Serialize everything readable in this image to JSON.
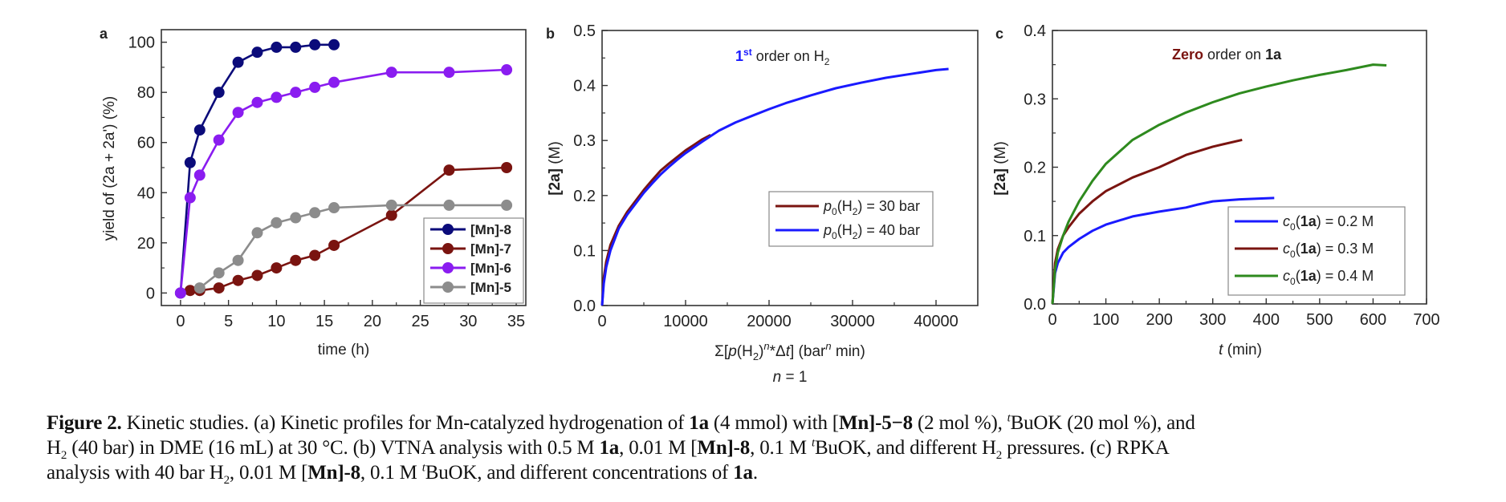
{
  "chart_data": [
    {
      "panel": "a",
      "type": "line",
      "title": "",
      "xlabel": "time (h)",
      "ylabel": "yield of (2a + 2a') (%)",
      "xlim": [
        -2,
        36
      ],
      "ylim": [
        -5,
        105
      ],
      "xticks": [
        0,
        5,
        10,
        15,
        20,
        25,
        30,
        35
      ],
      "yticks": [
        0,
        20,
        40,
        60,
        80,
        100
      ],
      "grid": false,
      "legend_position": "bottom-right",
      "markers": true,
      "series": [
        {
          "name": "[Mn]-8",
          "color": "#0b0b7a",
          "x": [
            0,
            1,
            2,
            4,
            6,
            8,
            10,
            12,
            14,
            16
          ],
          "y": [
            0,
            52,
            65,
            80,
            92,
            96,
            98,
            98,
            99,
            99
          ]
        },
        {
          "name": "[Mn]-7",
          "color": "#7a1410",
          "x": [
            1,
            2,
            4,
            6,
            8,
            10,
            12,
            14,
            16,
            22,
            28,
            34
          ],
          "y": [
            1,
            1,
            2,
            5,
            7,
            10,
            13,
            15,
            19,
            31,
            49,
            50
          ]
        },
        {
          "name": "[Mn]-6",
          "color": "#8a1cf0",
          "x": [
            0,
            1,
            2,
            4,
            6,
            8,
            10,
            12,
            14,
            16,
            22,
            28,
            34
          ],
          "y": [
            0,
            38,
            47,
            61,
            72,
            76,
            78,
            80,
            82,
            84,
            88,
            88,
            89
          ]
        },
        {
          "name": "[Mn]-5",
          "color": "#8c8c8c",
          "x": [
            2,
            4,
            6,
            8,
            10,
            12,
            14,
            16,
            22,
            28,
            34
          ],
          "y": [
            2,
            8,
            13,
            24,
            28,
            30,
            32,
            34,
            35,
            35,
            35
          ]
        }
      ]
    },
    {
      "panel": "b",
      "type": "line",
      "title": "",
      "annotation": {
        "prefix": "1",
        "sup": "st",
        "text": " order on H",
        "sub": "2"
      },
      "xlabel": "Σ[p(H2)^n*Δt] (bar^n min)",
      "xlabel_note": "n = 1",
      "ylabel": "[2a] (M)",
      "xlim": [
        0,
        45000
      ],
      "ylim": [
        0,
        0.5
      ],
      "xticks": [
        0,
        10000,
        20000,
        30000,
        40000
      ],
      "yticks": [
        0.0,
        0.1,
        0.2,
        0.3,
        0.4,
        0.5
      ],
      "grid": false,
      "legend_position": "center-right",
      "markers": false,
      "series": [
        {
          "name": "p0(H2) = 30 bar",
          "color": "#7a1410",
          "x": [
            0,
            200,
            500,
            1000,
            2000,
            3000,
            4000,
            5000,
            6000,
            7000,
            8000,
            9000,
            10000,
            11000,
            12000,
            13000
          ],
          "y": [
            0,
            0.05,
            0.08,
            0.11,
            0.145,
            0.17,
            0.19,
            0.21,
            0.228,
            0.245,
            0.258,
            0.27,
            0.282,
            0.292,
            0.302,
            0.31
          ]
        },
        {
          "name": "p0(H2) = 40 bar",
          "color": "#1a1aff",
          "x": [
            0,
            200,
            500,
            1000,
            2000,
            3000,
            4000,
            5000,
            6000,
            7000,
            8000,
            9000,
            10000,
            12000,
            14000,
            16000,
            18000,
            20000,
            22000,
            25000,
            28000,
            31000,
            34000,
            37000,
            40000,
            41500
          ],
          "y": [
            0,
            0.04,
            0.07,
            0.1,
            0.14,
            0.165,
            0.185,
            0.205,
            0.222,
            0.238,
            0.252,
            0.265,
            0.277,
            0.298,
            0.318,
            0.333,
            0.345,
            0.357,
            0.368,
            0.382,
            0.395,
            0.405,
            0.414,
            0.421,
            0.428,
            0.43
          ]
        }
      ]
    },
    {
      "panel": "c",
      "type": "line",
      "title": "",
      "annotation": {
        "highlight": "Zero",
        "text": " order on ",
        "bold": "1a"
      },
      "xlabel": "t (min)",
      "ylabel": "[2a] (M)",
      "xlim": [
        0,
        700
      ],
      "ylim": [
        0,
        0.4
      ],
      "xticks": [
        0,
        100,
        200,
        300,
        400,
        500,
        600,
        700
      ],
      "yticks": [
        0.0,
        0.1,
        0.2,
        0.3,
        0.4
      ],
      "grid": false,
      "legend_position": "bottom-right",
      "markers": false,
      "series": [
        {
          "name": "c0(1a) = 0.2 M",
          "color": "#1a1aff",
          "x": [
            0,
            5,
            10,
            20,
            30,
            50,
            75,
            100,
            150,
            200,
            250,
            270,
            300,
            350,
            415
          ],
          "y": [
            0,
            0.045,
            0.06,
            0.075,
            0.083,
            0.095,
            0.107,
            0.116,
            0.128,
            0.135,
            0.141,
            0.145,
            0.15,
            0.153,
            0.155
          ]
        },
        {
          "name": "c0(1a) = 0.3 M",
          "color": "#7a1410",
          "x": [
            0,
            5,
            10,
            20,
            30,
            50,
            75,
            100,
            150,
            200,
            250,
            300,
            355
          ],
          "y": [
            0,
            0.06,
            0.08,
            0.1,
            0.112,
            0.132,
            0.15,
            0.165,
            0.185,
            0.2,
            0.218,
            0.23,
            0.24
          ]
        },
        {
          "name": "c0(1a) = 0.4 M",
          "color": "#2e8a1e",
          "x": [
            0,
            5,
            10,
            20,
            30,
            50,
            75,
            100,
            150,
            200,
            250,
            300,
            350,
            400,
            450,
            500,
            550,
            600,
            625
          ],
          "y": [
            0,
            0.05,
            0.075,
            0.1,
            0.12,
            0.15,
            0.18,
            0.205,
            0.24,
            0.262,
            0.28,
            0.295,
            0.308,
            0.318,
            0.327,
            0.335,
            0.342,
            0.35,
            0.349
          ]
        }
      ]
    }
  ],
  "panel_labels": {
    "a": "a",
    "b": "b",
    "c": "c"
  },
  "caption": {
    "figure_label": "Figure 2.",
    "line1": " Kinetic studies. (a) Kinetic profiles for Mn-catalyzed hydrogenation of ",
    "line1_bold": "1a",
    "line1_rest": " (4 mmol) with [",
    "line1_mn": "Mn",
    "line1_range": "]-5−8",
    "line1_end": " (2 mol %), ",
    "tbu_sup": "t",
    "line1_tail": "BuOK (20 mol %), and",
    "line2_a": "H",
    "line2_b": " (40 bar) in DME (16 mL) at 30 °C. (b) VTNA analysis with 0.5 M ",
    "line2_c": "1a",
    "line2_d": ", 0.01 M [",
    "line2_e": "Mn",
    "line2_f": "]-8",
    "line2_g": ", 0.1 M ",
    "line2_h": "BuOK, and different H",
    "line2_i": " pressures. (c) RPKA",
    "line3_a": "analysis with 40 bar H",
    "line3_b": ", 0.01 M [",
    "line3_c": "Mn",
    "line3_d": "]-8",
    "line3_e": ", 0.1 M ",
    "line3_f": "BuOK, and different concentrations of ",
    "line3_g": "1a",
    "line3_h": ".",
    "sub2": "2"
  }
}
